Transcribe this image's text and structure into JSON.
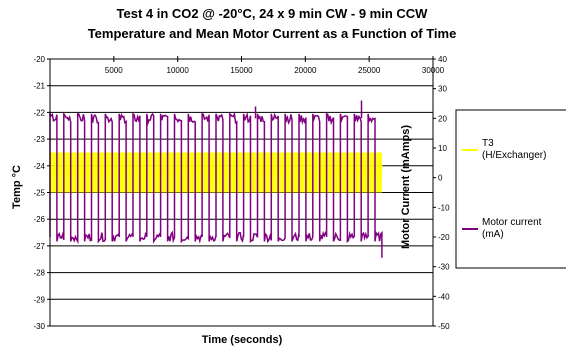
{
  "chart_data": {
    "type": "line",
    "title": "Test 4 in CO2 @ -20°C, 24 x 9 min CW - 9 min CCW",
    "subtitle": "Temperature and Mean Motor Current as a Function of Time",
    "xlabel": "Time (seconds)",
    "ylabel_left": "Temp °C",
    "ylabel_right": "Motor Current (mAmps)",
    "xlim": [
      0,
      30000
    ],
    "ylim_left": [
      -30,
      -20
    ],
    "ylim_right": [
      -50,
      40
    ],
    "x_ticks": [
      "5000",
      "10000",
      "15000",
      "20000",
      "25000",
      "30000"
    ],
    "x_tick_values": [
      5000,
      10000,
      15000,
      20000,
      25000,
      30000
    ],
    "y_left_ticks": [
      "-20",
      "-21",
      "-22",
      "-23",
      "-24",
      "-25",
      "-26",
      "-27",
      "-28",
      "-29",
      "-30"
    ],
    "y_left_tick_values": [
      -20,
      -21,
      -22,
      -23,
      -24,
      -25,
      -26,
      -27,
      -28,
      -29,
      -30
    ],
    "y_right_ticks": [
      "40",
      "30",
      "20",
      "10",
      "0",
      "-10",
      "-20",
      "-30",
      "-40",
      "-50"
    ],
    "y_right_tick_values": [
      40,
      30,
      20,
      10,
      0,
      -10,
      -20,
      -30,
      -40,
      -50
    ],
    "grid": "horizontal",
    "legend_position": "right",
    "series": [
      {
        "name": "T3 (H/Exchanger)",
        "legend_lines": [
          "T3",
          "(H/Exchanger)"
        ],
        "axis": "left",
        "color": "#ffff00",
        "x_range": [
          0,
          26000
        ],
        "band_low": -25.0,
        "band_high": -23.5,
        "mean": -24.2
      },
      {
        "name": "Motor current (mA)",
        "legend_lines": [
          "Motor current",
          "(mA)"
        ],
        "axis": "right",
        "color": "#800080",
        "x_range": [
          0,
          26000
        ],
        "cycle_count": 24,
        "high_level": 20,
        "low_level": -20,
        "spikes": [
          {
            "x": 16100,
            "value": 24
          },
          {
            "x": 24400,
            "value": 26
          }
        ]
      }
    ]
  }
}
